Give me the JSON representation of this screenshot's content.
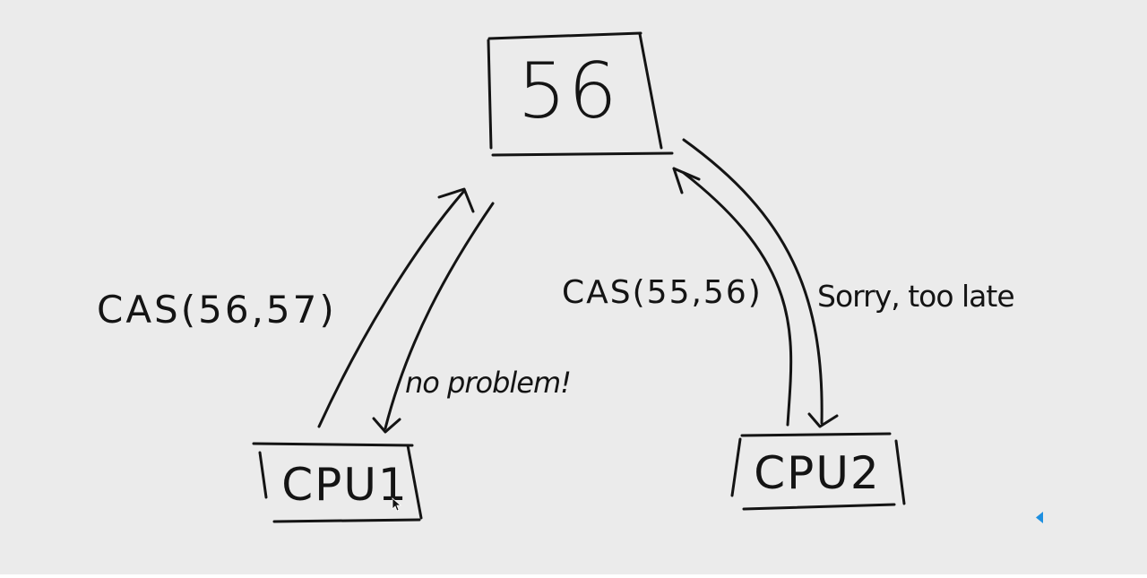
{
  "diagram": {
    "memory": {
      "value": "56"
    },
    "cpu1": {
      "label": "CPU1",
      "request": "CAS(56,57)",
      "response": "no problem!"
    },
    "cpu2": {
      "label": "CPU2",
      "request": "CAS(55,56)",
      "response": "Sorry, too late"
    }
  },
  "overlay": {
    "marker_color": "#1e8fe0"
  }
}
